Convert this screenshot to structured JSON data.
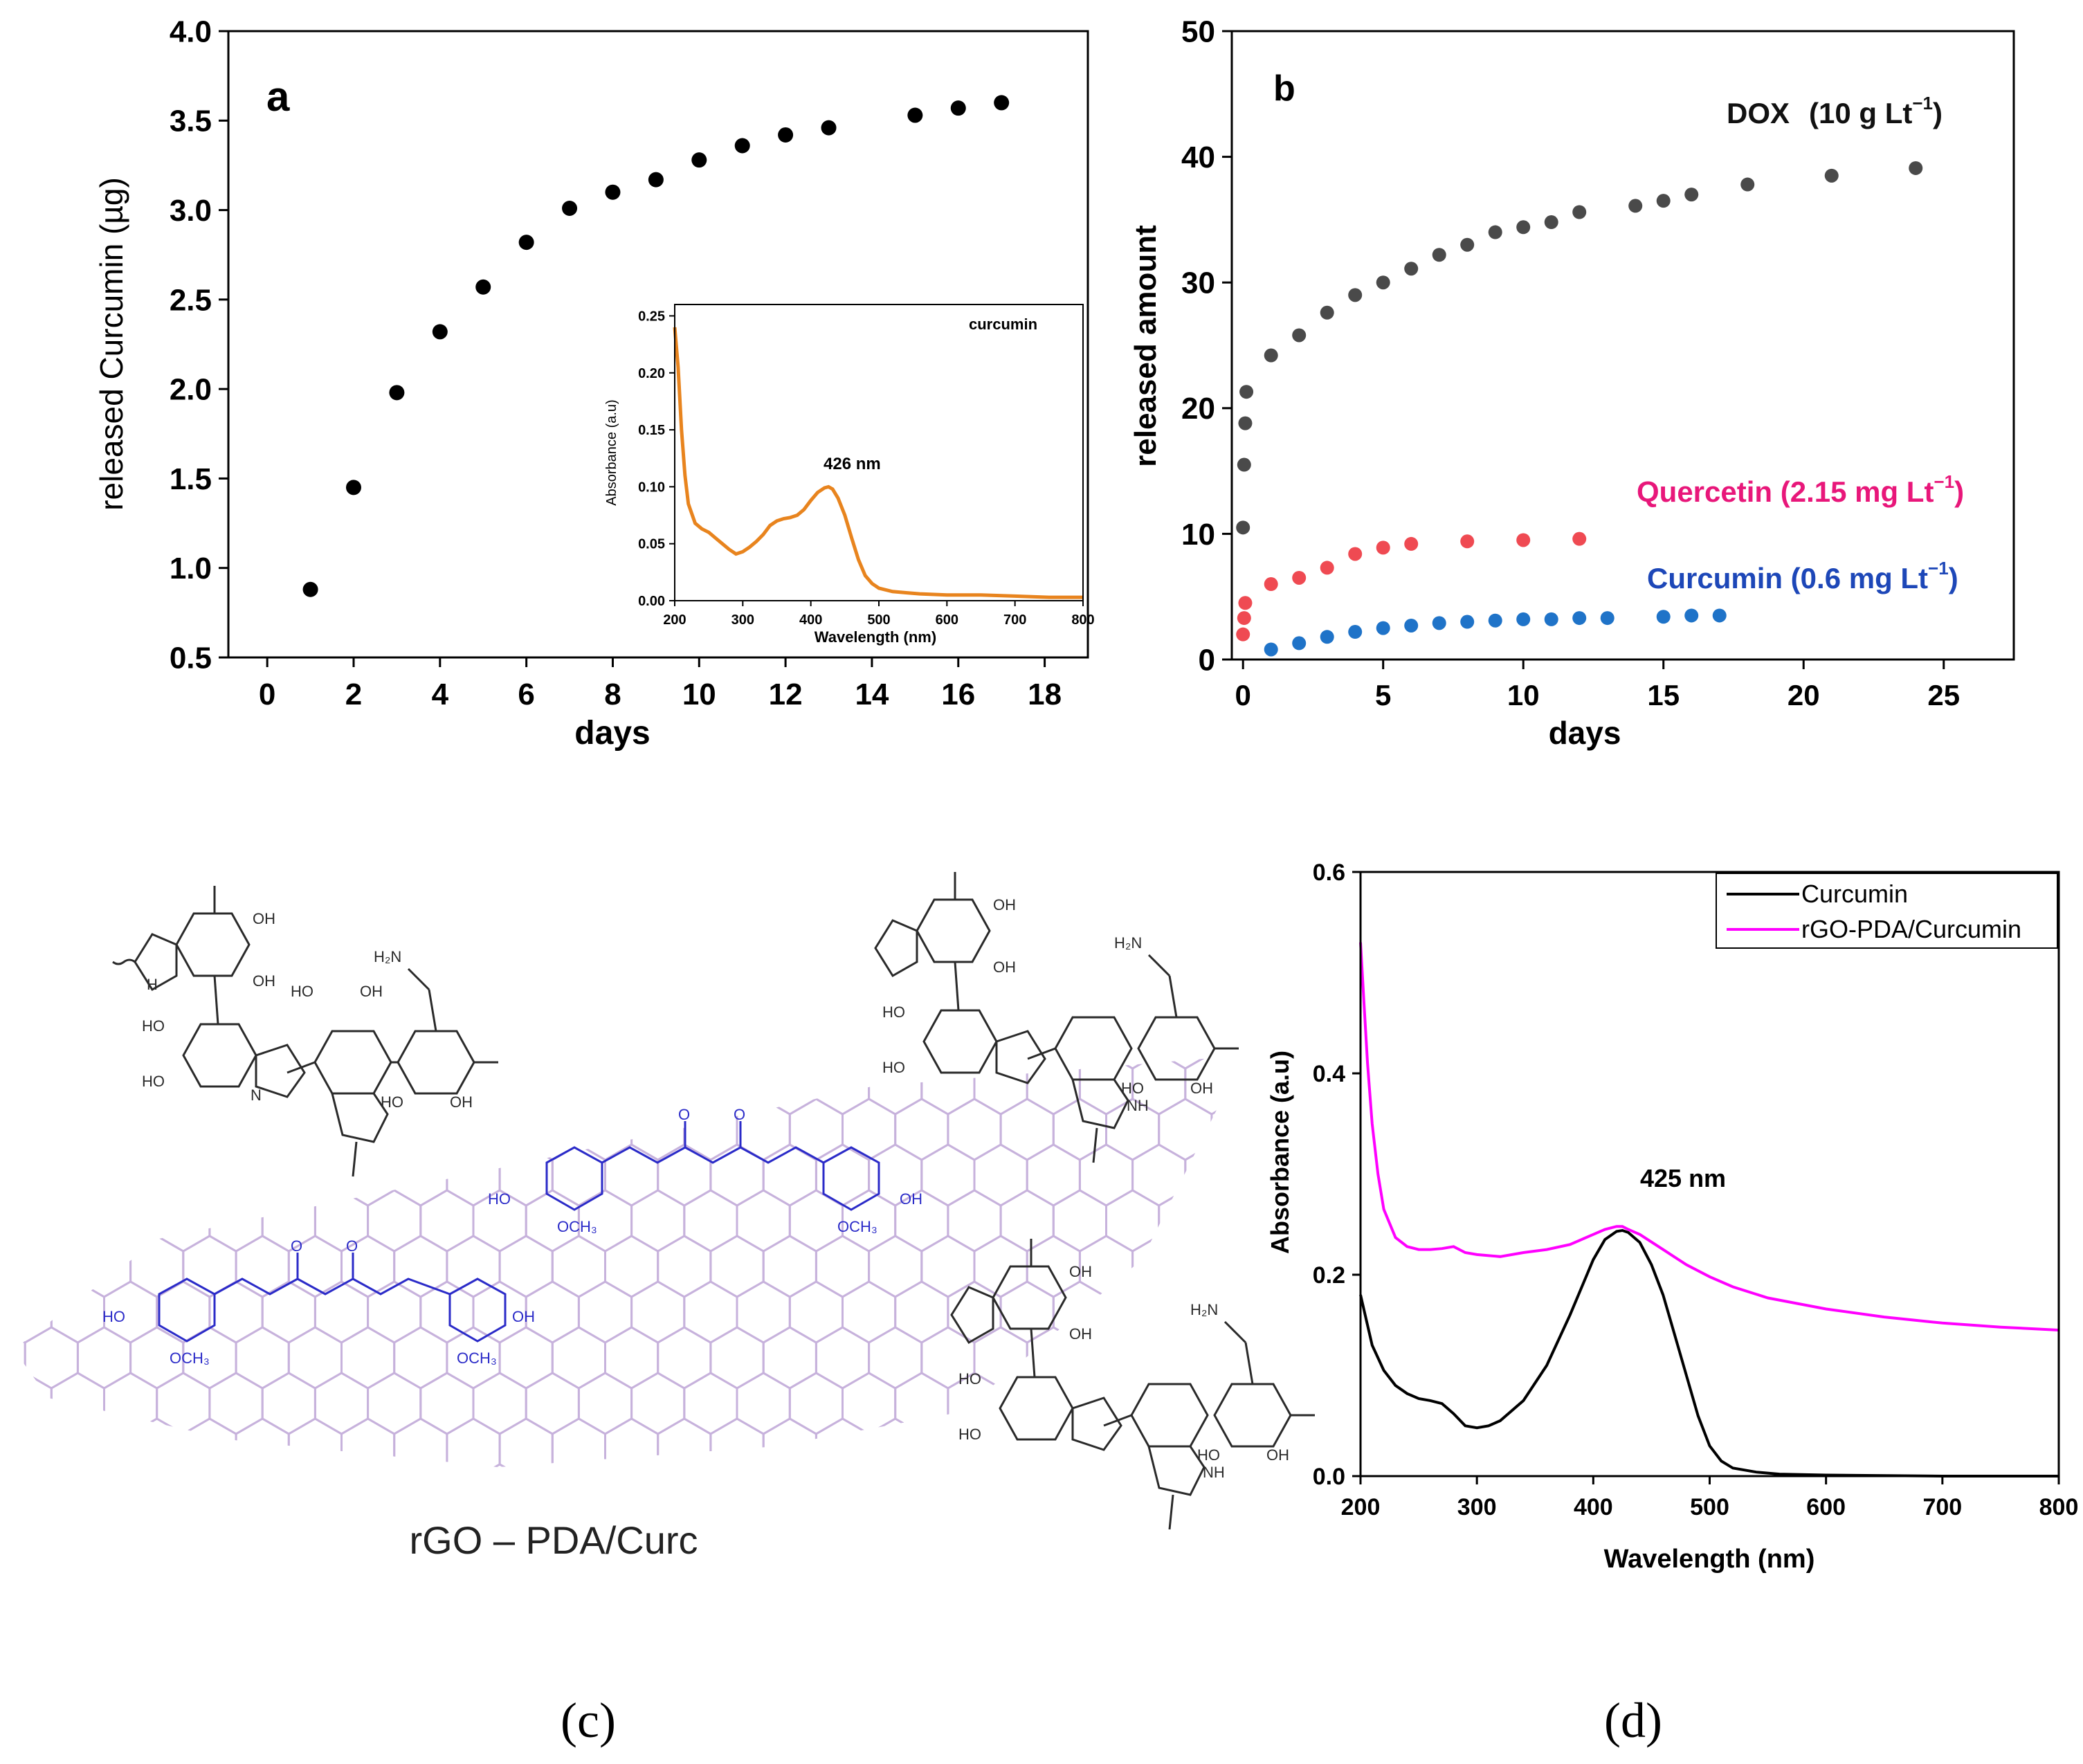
{
  "colors": {
    "axis": "#000000",
    "panel_a_points": "#000000",
    "inset_line": "#e8841e",
    "dox": "#4a4a4a",
    "quercetin": "#ef4a52",
    "curcumin_b": "#1f73c8",
    "quercetin_label": "#e8177a",
    "curcumin_label": "#1d47b8",
    "molecule_dark": "#2a2a2a",
    "molecule_blue": "#2b2bc8",
    "graphene": "#c7b2dc",
    "curve_curcumin": "#000000",
    "curve_rgo": "#ff00ff"
  },
  "chart_data": [
    {
      "id": "a",
      "type": "scatter",
      "panel_letter": "a",
      "xlabel": "days",
      "ylabel": "released Curcumin (µg)",
      "xlim": [
        -0.9,
        19
      ],
      "ylim": [
        0.5,
        4.0
      ],
      "xticks": [
        0,
        2,
        4,
        6,
        8,
        10,
        12,
        14,
        16,
        18
      ],
      "yticks": [
        0.5,
        1.0,
        1.5,
        2.0,
        2.5,
        3.0,
        3.5,
        4.0
      ],
      "ytick_labels": [
        "0.5",
        "1.0",
        "1.5",
        "2.0",
        "2.5",
        "3.0",
        "3.5",
        "4.0"
      ],
      "grid": false,
      "series": [
        {
          "x": [
            1,
            2,
            3,
            4,
            5,
            6,
            7,
            8,
            9,
            10,
            11,
            12,
            13,
            15,
            16,
            17
          ],
          "y": [
            0.88,
            1.45,
            1.98,
            2.32,
            2.57,
            2.82,
            3.01,
            3.1,
            3.17,
            3.28,
            3.36,
            3.42,
            3.46,
            3.53,
            3.57,
            3.6
          ]
        }
      ],
      "inset": {
        "type": "line",
        "xlabel": "Wavelength (nm)",
        "ylabel": "Absorbance (a.u)",
        "legend": "curcumin",
        "annotation": "426 nm",
        "xlim": [
          200,
          800
        ],
        "ylim": [
          0,
          0.26
        ],
        "xticks": [
          200,
          300,
          400,
          500,
          600,
          700,
          800
        ],
        "yticks": [
          0.0,
          0.05,
          0.1,
          0.15,
          0.2,
          0.25
        ],
        "ytick_labels": [
          "0.00",
          "0.05",
          "0.10",
          "0.15",
          "0.20",
          "0.25"
        ],
        "x": [
          200,
          205,
          210,
          215,
          220,
          230,
          240,
          250,
          260,
          270,
          280,
          290,
          300,
          310,
          320,
          330,
          340,
          350,
          360,
          370,
          380,
          390,
          400,
          410,
          420,
          426,
          432,
          440,
          450,
          460,
          470,
          480,
          490,
          500,
          520,
          540,
          560,
          600,
          650,
          700,
          750,
          800
        ],
        "y": [
          0.24,
          0.205,
          0.15,
          0.11,
          0.085,
          0.068,
          0.063,
          0.06,
          0.055,
          0.05,
          0.045,
          0.041,
          0.043,
          0.047,
          0.052,
          0.058,
          0.066,
          0.07,
          0.072,
          0.073,
          0.075,
          0.08,
          0.088,
          0.095,
          0.099,
          0.1,
          0.098,
          0.09,
          0.075,
          0.055,
          0.036,
          0.022,
          0.015,
          0.011,
          0.008,
          0.007,
          0.006,
          0.005,
          0.005,
          0.004,
          0.003,
          0.003
        ]
      }
    },
    {
      "id": "b",
      "type": "scatter",
      "panel_letter": "b",
      "xlabel": "days",
      "ylabel": "released amount",
      "xlim": [
        -0.4,
        27.5
      ],
      "ylim": [
        0,
        50
      ],
      "xticks": [
        0,
        5,
        10,
        15,
        20,
        25
      ],
      "yticks": [
        0,
        10,
        20,
        30,
        40,
        50
      ],
      "grid": false,
      "series": [
        {
          "label_main": "DOX",
          "label_unit": "(10 g Lt",
          "label_exp": "−1",
          "label_close": ")",
          "x": [
            0,
            0.04,
            0.08,
            0.12,
            1,
            2,
            3,
            4,
            5,
            6,
            7,
            8,
            9,
            10,
            11,
            12,
            14,
            15,
            16,
            18,
            21,
            24
          ],
          "y": [
            10.5,
            15.5,
            18.8,
            21.3,
            24.2,
            25.8,
            27.6,
            29.0,
            30.0,
            31.1,
            32.2,
            33.0,
            34.0,
            34.4,
            34.8,
            35.6,
            36.1,
            36.5,
            37.0,
            37.8,
            38.5,
            39.1
          ]
        },
        {
          "label_main": "Quercetin (2.15 mg Lt",
          "label_exp": "−1",
          "label_close": ")",
          "x": [
            0,
            0.04,
            0.08,
            1,
            2,
            3,
            4,
            5,
            6,
            8,
            10,
            12
          ],
          "y": [
            2.0,
            3.3,
            4.5,
            6.0,
            6.5,
            7.3,
            8.4,
            8.9,
            9.2,
            9.4,
            9.5,
            9.6
          ]
        },
        {
          "label_main": "Curcumin (0.6 mg Lt",
          "label_exp": "−1",
          "label_close": ")",
          "x": [
            1,
            2,
            3,
            4,
            5,
            6,
            7,
            8,
            9,
            10,
            11,
            12,
            13,
            15,
            16,
            17
          ],
          "y": [
            0.8,
            1.3,
            1.8,
            2.2,
            2.5,
            2.7,
            2.9,
            3.0,
            3.1,
            3.2,
            3.2,
            3.3,
            3.3,
            3.4,
            3.5,
            3.5
          ]
        }
      ]
    },
    {
      "id": "d",
      "type": "line",
      "xlabel": "Wavelength (nm)",
      "ylabel": "Absorbance (a.u)",
      "annotation": "425 nm",
      "xlim": [
        200,
        800
      ],
      "ylim": [
        0,
        0.6
      ],
      "xticks": [
        200,
        300,
        400,
        500,
        600,
        700,
        800
      ],
      "yticks": [
        0.0,
        0.2,
        0.4,
        0.6
      ],
      "ytick_labels": [
        "0.0",
        "0.2",
        "0.4",
        "0.6"
      ],
      "legend_position": "top-right",
      "grid": false,
      "series": [
        {
          "name": "Curcumin",
          "x": [
            200,
            205,
            210,
            220,
            230,
            240,
            250,
            260,
            270,
            280,
            290,
            300,
            310,
            320,
            340,
            360,
            380,
            400,
            410,
            420,
            425,
            430,
            440,
            450,
            460,
            470,
            480,
            490,
            500,
            510,
            520,
            540,
            560,
            600,
            700,
            800
          ],
          "y": [
            0.18,
            0.155,
            0.13,
            0.105,
            0.09,
            0.082,
            0.077,
            0.075,
            0.072,
            0.062,
            0.05,
            0.048,
            0.05,
            0.055,
            0.075,
            0.11,
            0.16,
            0.215,
            0.235,
            0.243,
            0.244,
            0.242,
            0.232,
            0.21,
            0.18,
            0.14,
            0.1,
            0.06,
            0.03,
            0.015,
            0.008,
            0.004,
            0.002,
            0.001,
            0.0,
            0.0
          ]
        },
        {
          "name": "rGO-PDA/Curcumin",
          "x": [
            200,
            203,
            206,
            210,
            215,
            220,
            230,
            240,
            250,
            260,
            270,
            280,
            290,
            300,
            320,
            340,
            360,
            380,
            400,
            410,
            420,
            425,
            430,
            440,
            460,
            480,
            500,
            520,
            550,
            600,
            650,
            700,
            750,
            800
          ],
          "y": [
            0.53,
            0.47,
            0.41,
            0.35,
            0.3,
            0.265,
            0.237,
            0.228,
            0.225,
            0.225,
            0.226,
            0.228,
            0.222,
            0.22,
            0.218,
            0.222,
            0.225,
            0.23,
            0.24,
            0.245,
            0.248,
            0.248,
            0.245,
            0.24,
            0.225,
            0.21,
            0.198,
            0.188,
            0.177,
            0.166,
            0.158,
            0.152,
            0.148,
            0.145
          ]
        }
      ]
    }
  ],
  "scheme": {
    "title": "rGO – PDA/Curc",
    "pda_labels": [
      "OH",
      "HO",
      "NH",
      "H",
      "N",
      "H₂N"
    ],
    "curcumin_labels": [
      "HO",
      "OH",
      "OCH₃",
      "O"
    ]
  },
  "captions": {
    "c": "(c)",
    "d": "(d)"
  }
}
